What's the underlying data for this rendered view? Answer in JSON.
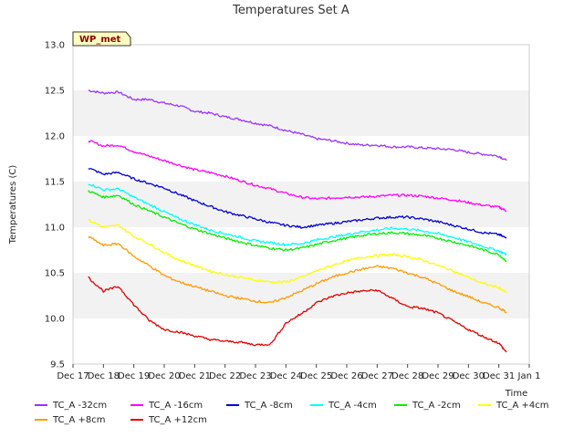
{
  "chart_data": {
    "type": "line",
    "title": "Temperatures Set A",
    "xlabel": "Time",
    "ylabel": "Temperatures (C)",
    "badge": "WP_met",
    "ylim": [
      9.5,
      13.0
    ],
    "xlim": [
      "Dec 17",
      "Jan 1"
    ],
    "x_ticks": [
      "Dec 17",
      "Dec 18",
      "Dec 19",
      "Dec 20",
      "Dec 21",
      "Dec 22",
      "Dec 23",
      "Dec 24",
      "Dec 25",
      "Dec 26",
      "Dec 27",
      "Dec 28",
      "Dec 29",
      "Dec 30",
      "Dec 31",
      "Jan 1"
    ],
    "y_ticks": [
      "9.5",
      "10.0",
      "10.5",
      "11.0",
      "11.5",
      "12.0",
      "12.5",
      "13.0"
    ],
    "grid": "shaded horizontal bands",
    "legend_position": "bottom",
    "x": [
      "Dec 17 12:00",
      "Dec 18 00:00",
      "Dec 18 12:00",
      "Dec 19 00:00",
      "Dec 19 12:00",
      "Dec 20 00:00",
      "Dec 20 12:00",
      "Dec 21 00:00",
      "Dec 21 12:00",
      "Dec 22 00:00",
      "Dec 22 12:00",
      "Dec 23 00:00",
      "Dec 23 12:00",
      "Dec 24 00:00",
      "Dec 24 12:00",
      "Dec 25 00:00",
      "Dec 25 12:00",
      "Dec 26 00:00",
      "Dec 26 12:00",
      "Dec 27 00:00",
      "Dec 27 12:00",
      "Dec 28 00:00",
      "Dec 28 12:00",
      "Dec 29 00:00",
      "Dec 29 12:00",
      "Dec 30 00:00",
      "Dec 30 12:00",
      "Dec 31 00:00",
      "Dec 31 06:00"
    ],
    "series": [
      {
        "name": "TC_A -32cm",
        "color": "#9933ff",
        "values": [
          12.5,
          12.47,
          12.48,
          12.4,
          12.4,
          12.36,
          12.33,
          12.27,
          12.25,
          12.21,
          12.18,
          12.14,
          12.11,
          12.06,
          12.02,
          11.97,
          11.95,
          11.92,
          11.9,
          11.9,
          11.88,
          11.88,
          11.87,
          11.86,
          11.85,
          11.82,
          11.8,
          11.78,
          11.73
        ]
      },
      {
        "name": "TC_A -16cm",
        "color": "#ff00ff",
        "values": [
          11.95,
          11.89,
          11.9,
          11.83,
          11.78,
          11.73,
          11.68,
          11.63,
          11.6,
          11.56,
          11.51,
          11.46,
          11.42,
          11.37,
          11.33,
          11.31,
          11.32,
          11.33,
          11.33,
          11.34,
          11.35,
          11.35,
          11.34,
          11.32,
          11.3,
          11.27,
          11.24,
          11.22,
          11.18
        ]
      },
      {
        "name": "TC_A -8cm",
        "color": "#0000cc",
        "values": [
          11.65,
          11.58,
          11.6,
          11.53,
          11.48,
          11.43,
          11.36,
          11.29,
          11.23,
          11.17,
          11.13,
          11.09,
          11.05,
          11.02,
          11.0,
          11.02,
          11.04,
          11.06,
          11.08,
          11.1,
          11.11,
          11.11,
          11.09,
          11.06,
          11.02,
          10.98,
          10.94,
          10.92,
          10.88
        ]
      },
      {
        "name": "TC_A -4cm",
        "color": "#00ffff",
        "values": [
          11.48,
          11.41,
          11.42,
          11.33,
          11.25,
          11.17,
          11.09,
          11.03,
          10.97,
          10.93,
          10.89,
          10.85,
          10.83,
          10.81,
          10.82,
          10.86,
          10.89,
          10.92,
          10.95,
          10.97,
          10.99,
          10.98,
          10.96,
          10.93,
          10.89,
          10.84,
          10.79,
          10.74,
          10.7
        ]
      },
      {
        "name": "TC_A -2cm",
        "color": "#00ee00",
        "values": [
          11.4,
          11.33,
          11.35,
          11.25,
          11.18,
          11.11,
          11.04,
          10.98,
          10.93,
          10.88,
          10.84,
          10.8,
          10.77,
          10.75,
          10.77,
          10.81,
          10.85,
          10.88,
          10.91,
          10.93,
          10.94,
          10.93,
          10.91,
          10.88,
          10.84,
          10.8,
          10.75,
          10.7,
          10.63
        ]
      },
      {
        "name": "TC_A +4cm",
        "color": "#ffff00",
        "values": [
          11.08,
          11.0,
          11.02,
          10.9,
          10.82,
          10.72,
          10.64,
          10.58,
          10.52,
          10.48,
          10.45,
          10.42,
          10.4,
          10.4,
          10.45,
          10.52,
          10.58,
          10.63,
          10.67,
          10.69,
          10.7,
          10.68,
          10.64,
          10.58,
          10.52,
          10.45,
          10.38,
          10.34,
          10.28
        ]
      },
      {
        "name": "TC_A +8cm",
        "color": "#ff9900",
        "values": [
          10.9,
          10.8,
          10.82,
          10.68,
          10.58,
          10.47,
          10.4,
          10.35,
          10.3,
          10.25,
          10.22,
          10.19,
          10.17,
          10.23,
          10.3,
          10.38,
          10.45,
          10.5,
          10.54,
          10.57,
          10.55,
          10.5,
          10.45,
          10.38,
          10.3,
          10.24,
          10.17,
          10.12,
          10.07
        ]
      },
      {
        "name": "TC_A +12cm",
        "color": "#dd0000",
        "values": [
          10.45,
          10.3,
          10.35,
          10.15,
          9.98,
          9.88,
          9.85,
          9.81,
          9.77,
          9.75,
          9.74,
          9.71,
          9.72,
          9.95,
          10.05,
          10.17,
          10.24,
          10.28,
          10.3,
          10.31,
          10.22,
          10.13,
          10.11,
          10.06,
          9.97,
          9.88,
          9.8,
          9.73,
          9.63
        ]
      }
    ]
  }
}
